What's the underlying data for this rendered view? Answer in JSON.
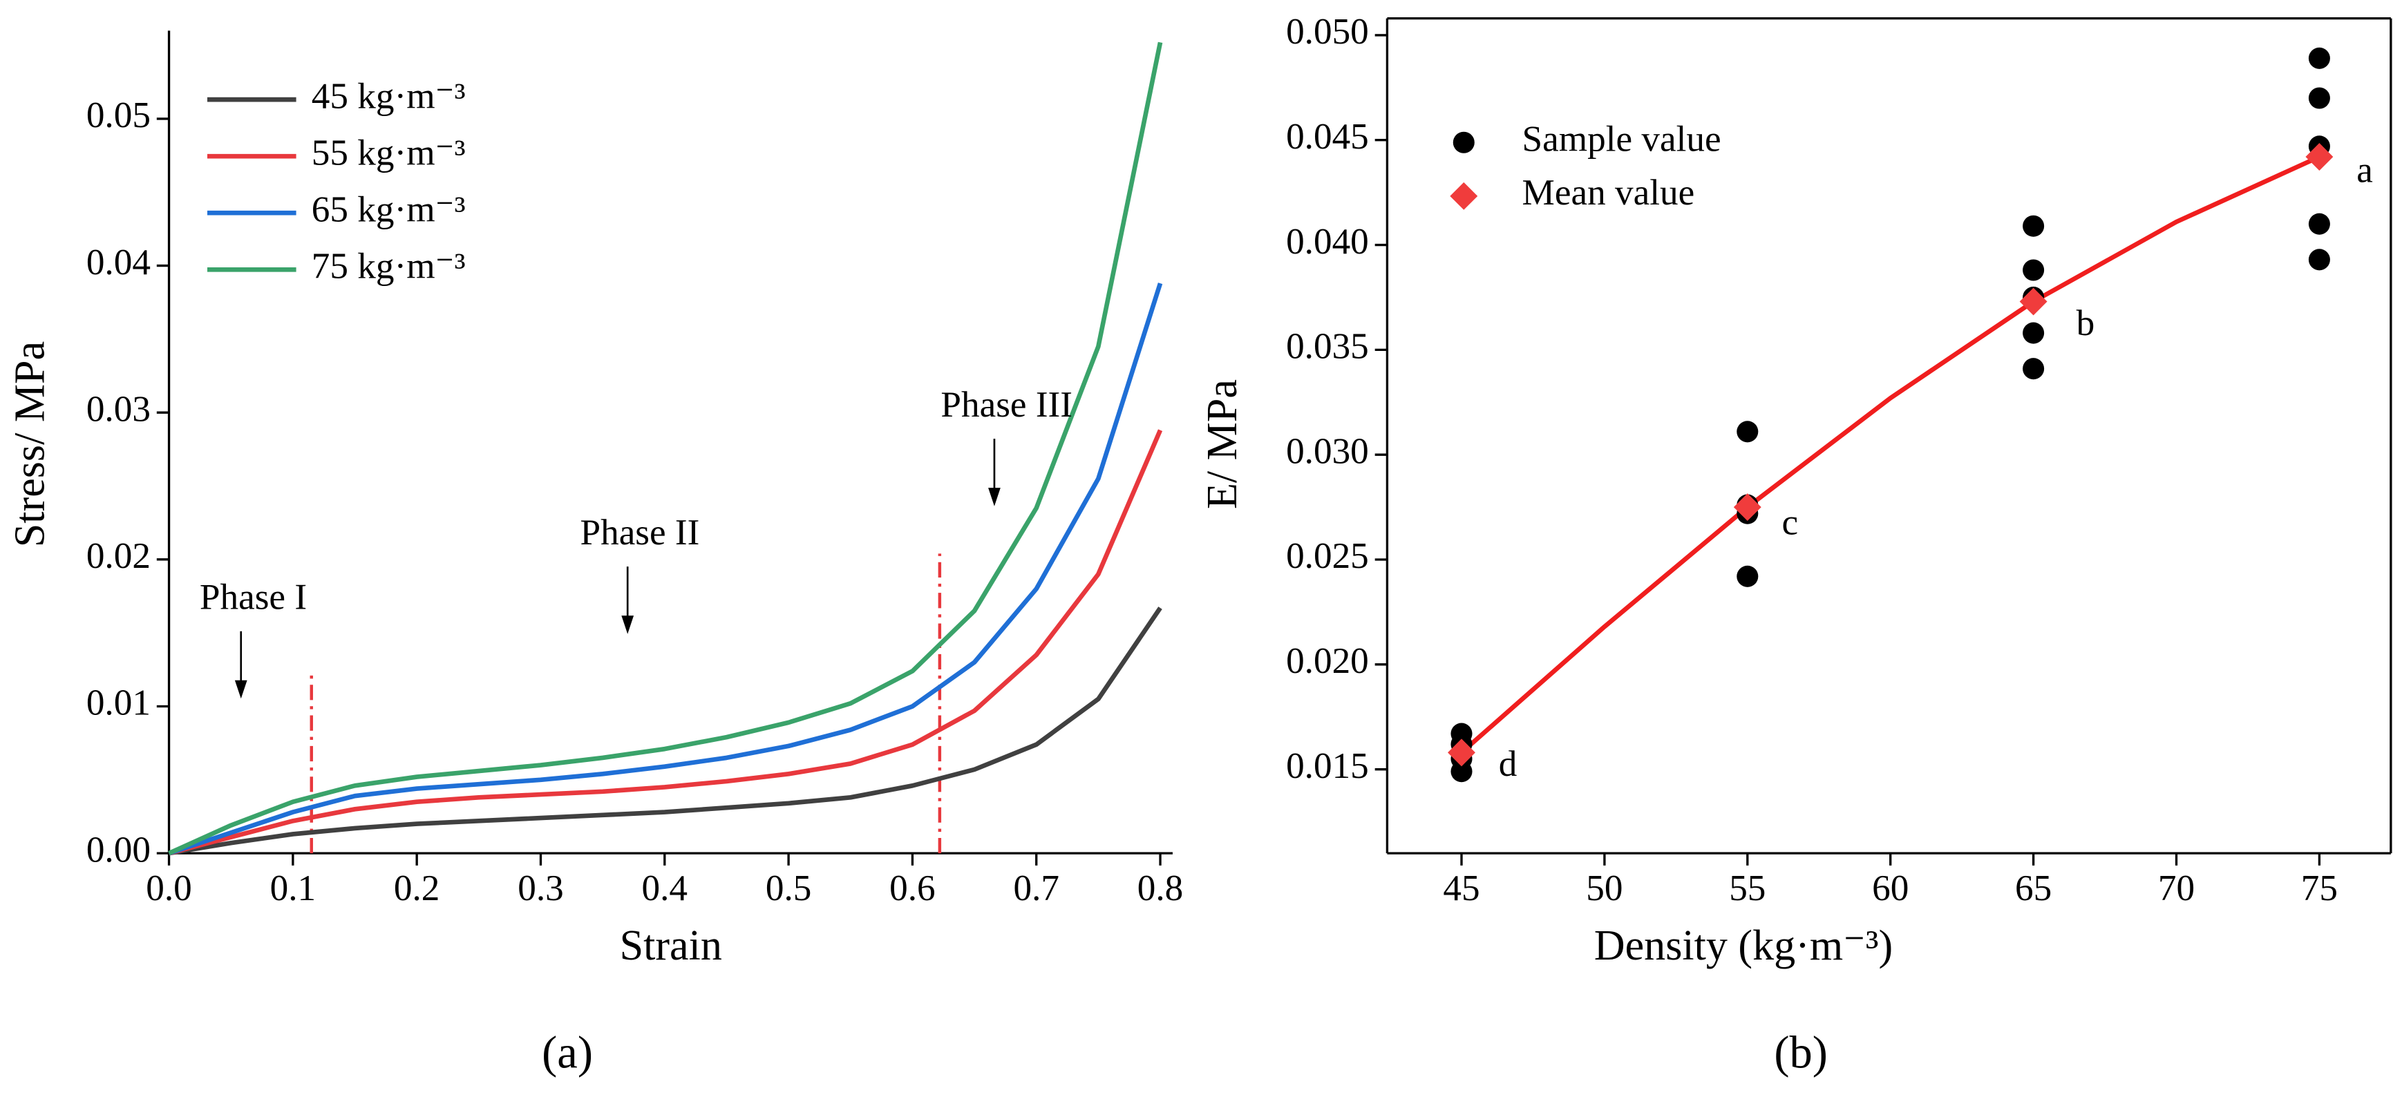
{
  "chart_data": [
    {
      "type": "line",
      "panel_label": "(a)",
      "xlabel": "Strain",
      "ylabel": "Stress/ MPa",
      "x": [
        0,
        0.05,
        0.1,
        0.15,
        0.2,
        0.25,
        0.3,
        0.35,
        0.4,
        0.45,
        0.5,
        0.55,
        0.6,
        0.65,
        0.7,
        0.75,
        0.8
      ],
      "series": [
        {
          "name": "45 kg·m⁻³",
          "color": "#404040",
          "values": [
            0,
            0.0007,
            0.0013,
            0.0017,
            0.002,
            0.0022,
            0.0024,
            0.0026,
            0.0028,
            0.0031,
            0.0034,
            0.0038,
            0.0046,
            0.0057,
            0.0074,
            0.0105,
            0.0167
          ]
        },
        {
          "name": "55 kg·m⁻³",
          "color": "#e8383d",
          "values": [
            0,
            0.0011,
            0.0022,
            0.003,
            0.0035,
            0.0038,
            0.004,
            0.0042,
            0.0045,
            0.0049,
            0.0054,
            0.0061,
            0.0074,
            0.0097,
            0.0135,
            0.019,
            0.0288
          ]
        },
        {
          "name": "65 kg·m⁻³",
          "color": "#1f6fd6",
          "values": [
            0,
            0.0014,
            0.0028,
            0.0039,
            0.0044,
            0.0047,
            0.005,
            0.0054,
            0.0059,
            0.0065,
            0.0073,
            0.0084,
            0.01,
            0.013,
            0.018,
            0.0255,
            0.0388
          ]
        },
        {
          "name": "75 kg·m⁻³",
          "color": "#3aa36a",
          "values": [
            0,
            0.0019,
            0.0035,
            0.0046,
            0.0052,
            0.0056,
            0.006,
            0.0065,
            0.0071,
            0.0079,
            0.0089,
            0.0102,
            0.0124,
            0.0165,
            0.0235,
            0.0345,
            0.0552
          ]
        }
      ],
      "xlim": [
        0,
        0.81
      ],
      "ylim": [
        0,
        0.056
      ],
      "xticks": [
        {
          "value": 0,
          "label": "0.0"
        },
        0.1,
        0.2,
        0.3,
        0.4,
        0.5,
        0.6,
        0.7,
        0.8
      ],
      "yticks": [
        {
          "value": 0,
          "label": "0.00"
        },
        0.01,
        0.02,
        0.03,
        0.04,
        0.05
      ],
      "frame": false,
      "legend": "upper left",
      "vlines": [
        {
          "x": 0.115,
          "y": 0.0125,
          "color": "#e8383d"
        },
        {
          "x": 0.622,
          "y": 0.0204,
          "color": "#e8383d"
        }
      ],
      "annotations": [
        {
          "text": "Phase I",
          "x": 0.068,
          "y": 0.0172,
          "arrow": true
        },
        {
          "text": "Phase II",
          "x": 0.38,
          "y": 0.0216,
          "arrow": true
        },
        {
          "text": "Phase III",
          "x": 0.676,
          "y": 0.0303,
          "arrow": true
        }
      ]
    },
    {
      "type": "scatter",
      "panel_label": "(b)",
      "xlabel": "Density (kg·m⁻³)",
      "ylabel": "E/ MPa",
      "series": [
        {
          "name": "Sample value",
          "marker": "circle",
          "color": "#000000",
          "x": [
            45,
            45,
            45,
            45,
            55,
            55,
            55,
            55,
            65,
            65,
            65,
            65,
            65,
            75,
            75,
            75,
            75,
            75
          ],
          "values": [
            0.0167,
            0.0162,
            0.0155,
            0.0149,
            0.0311,
            0.0272,
            0.0242,
            0.0276,
            0.0409,
            0.0388,
            0.0375,
            0.0358,
            0.0341,
            0.0489,
            0.047,
            0.0447,
            0.041,
            0.0393
          ]
        },
        {
          "name": "Mean value",
          "marker": "diamond",
          "color": "#f03c3c",
          "x": [
            45,
            55,
            65,
            75
          ],
          "values": [
            0.0158,
            0.0275,
            0.0373,
            0.0442
          ]
        },
        {
          "marker": "line",
          "color": "#f01e1e",
          "x": [
            45,
            50,
            55,
            60,
            65,
            70,
            75
          ],
          "values": [
            0.0158,
            0.0218,
            0.0275,
            0.0327,
            0.0373,
            0.0411,
            0.0442
          ]
        }
      ],
      "xlim": [
        42.4,
        77.5
      ],
      "ylim": [
        0.011,
        0.0508
      ],
      "xticks": [
        45,
        50,
        55,
        60,
        65,
        70,
        75
      ],
      "yticks": [
        0.015,
        {
          "value": 0.02,
          "label": "0.020"
        },
        0.025,
        {
          "value": 0.03,
          "label": "0.030"
        },
        0.035,
        {
          "value": 0.04,
          "label": "0.040"
        },
        0.045,
        {
          "value": 0.05,
          "label": "0.050"
        }
      ],
      "frame": true,
      "legend": "upper left",
      "annotations": [
        {
          "text": "a",
          "x": 76.3,
          "y": 0.0434
        },
        {
          "text": "b",
          "x": 66.5,
          "y": 0.0361
        },
        {
          "text": "c",
          "x": 56.2,
          "y": 0.0266
        },
        {
          "text": "d",
          "x": 46.3,
          "y": 0.0151
        }
      ]
    }
  ]
}
